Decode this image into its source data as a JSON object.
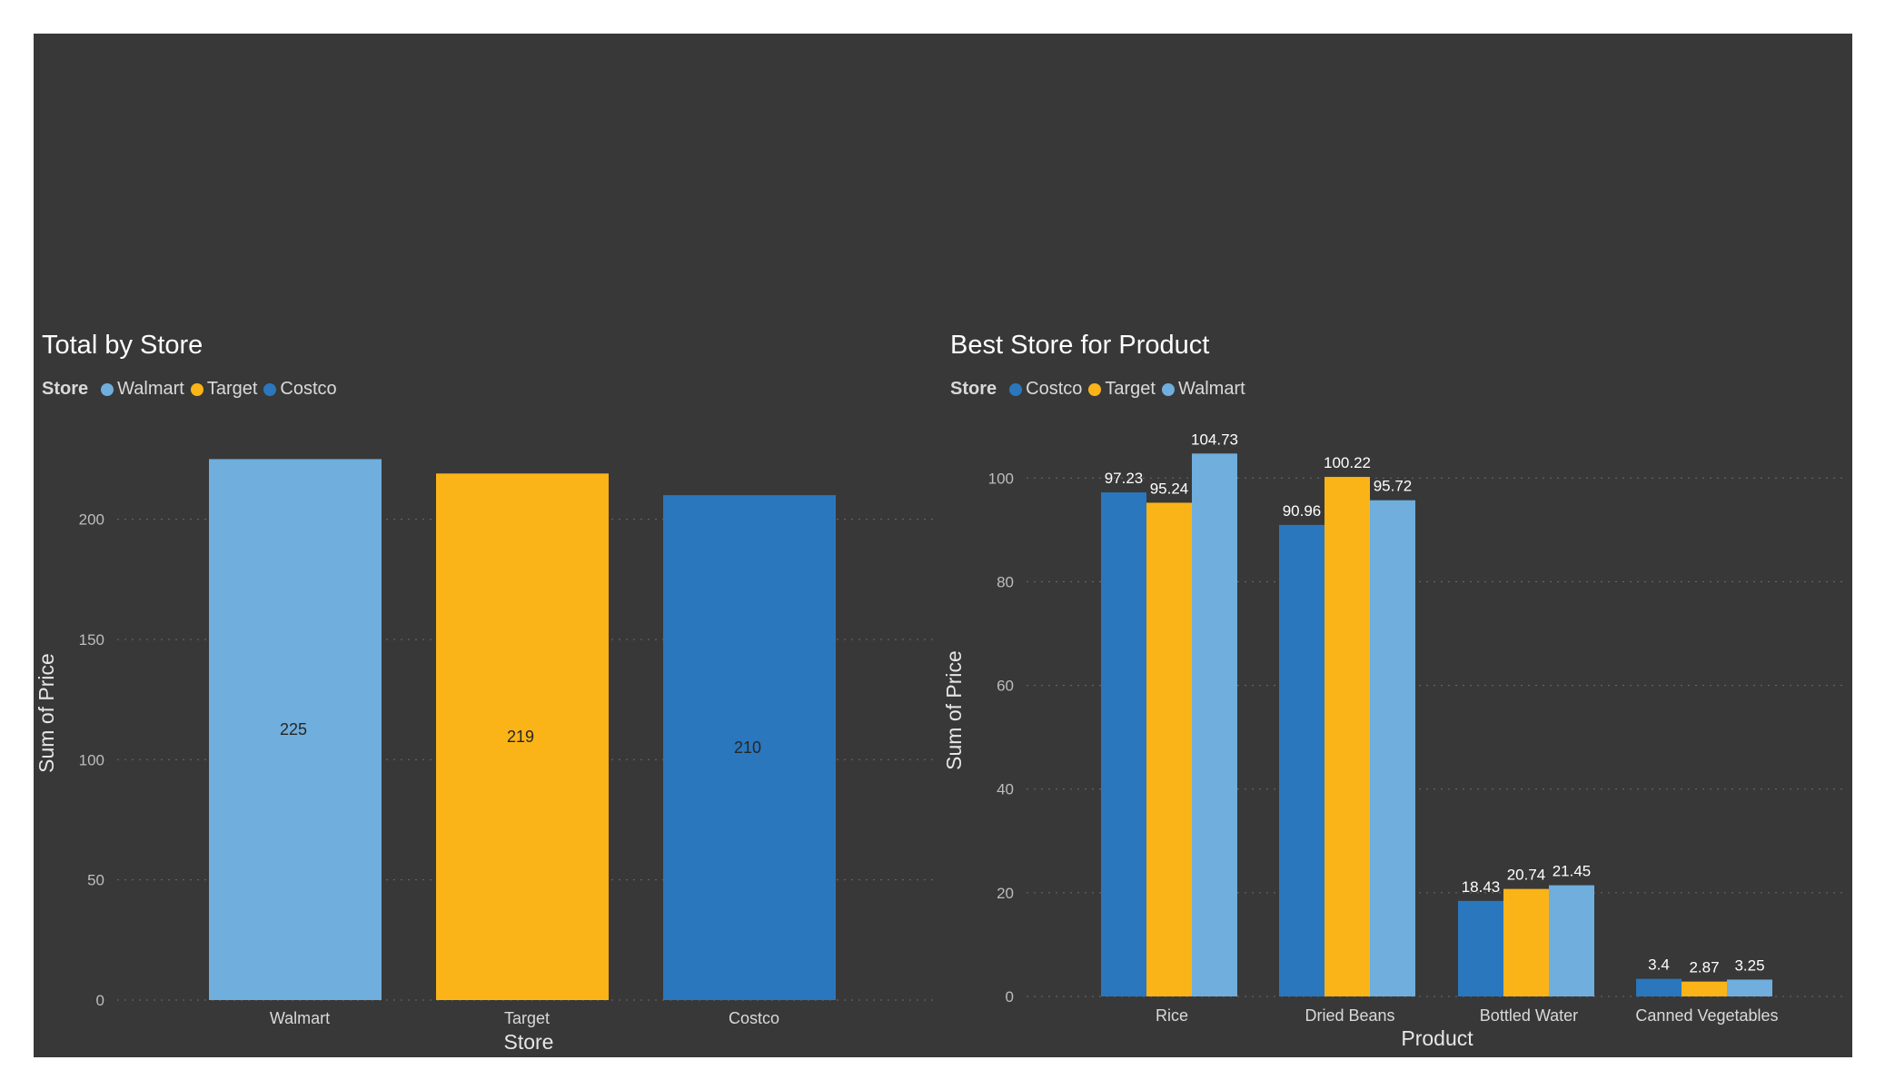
{
  "chart_data": [
    {
      "type": "bar",
      "title": "Total by Store",
      "xlabel": "Store",
      "ylabel": "Sum of Price",
      "legend_title": "Store",
      "legend": [
        {
          "name": "Walmart",
          "color": "#6FAEDD"
        },
        {
          "name": "Target",
          "color": "#FBB418"
        },
        {
          "name": "Costco",
          "color": "#2A77BD"
        }
      ],
      "categories": [
        "Walmart",
        "Target",
        "Costco"
      ],
      "values": [
        225,
        219,
        210
      ],
      "colors": [
        "#6FAEDD",
        "#FBB418",
        "#2A77BD"
      ],
      "ylim": [
        0,
        230
      ],
      "yticks": [
        0,
        50,
        100,
        150,
        200
      ],
      "grid": true,
      "legend_position": "top-left"
    },
    {
      "type": "bar",
      "title": "Best Store for Product",
      "xlabel": "Product",
      "ylabel": "Sum of Price",
      "legend_title": "Store",
      "legend": [
        {
          "name": "Costco",
          "color": "#2A77BD"
        },
        {
          "name": "Target",
          "color": "#FBB418"
        },
        {
          "name": "Walmart",
          "color": "#6FAEDD"
        }
      ],
      "categories": [
        "Rice",
        "Dried Beans",
        "Bottled Water",
        "Canned Vegetables"
      ],
      "series": [
        {
          "name": "Costco",
          "color": "#2A77BD",
          "values": [
            97.23,
            90.96,
            18.43,
            3.4
          ]
        },
        {
          "name": "Target",
          "color": "#FBB418",
          "values": [
            95.24,
            100.22,
            20.74,
            2.87
          ]
        },
        {
          "name": "Walmart",
          "color": "#6FAEDD",
          "values": [
            104.73,
            95.72,
            21.45,
            3.25
          ]
        }
      ],
      "ylim": [
        0,
        108
      ],
      "yticks": [
        0,
        20,
        40,
        60,
        80,
        100
      ],
      "grid": true,
      "legend_position": "top-left"
    }
  ]
}
